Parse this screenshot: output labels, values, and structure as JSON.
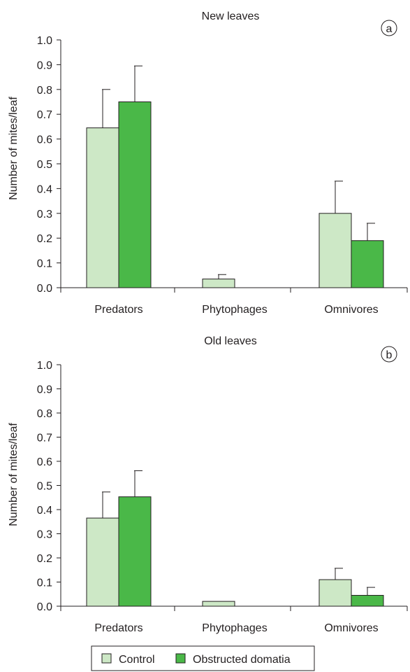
{
  "colors": {
    "control": "#cde8c6",
    "obstructed": "#4ab848",
    "stroke": "#231f20"
  },
  "chart_data": [
    {
      "type": "bar",
      "title": "New leaves",
      "panel_label": "a",
      "ylabel": "Number of mites/leaf",
      "xlabel": "",
      "ylim": [
        0,
        1.0
      ],
      "yticks": [
        "0.0",
        "0.1",
        "0.2",
        "0.3",
        "0.4",
        "0.5",
        "0.6",
        "0.7",
        "0.8",
        "0.9",
        "1.0"
      ],
      "categories": [
        "Predators",
        "Phytophages",
        "Omnivores"
      ],
      "series": [
        {
          "name": "Control",
          "values": [
            0.645,
            0.035,
            0.3
          ],
          "errors": [
            0.155,
            0.018,
            0.13
          ]
        },
        {
          "name": "Obstructed domatia",
          "values": [
            0.75,
            0.0,
            0.19
          ],
          "errors": [
            0.145,
            null,
            0.07
          ]
        }
      ]
    },
    {
      "type": "bar",
      "title": "Old leaves",
      "panel_label": "b",
      "ylabel": "Number of mites/leaf",
      "xlabel": "",
      "ylim": [
        0,
        1.0
      ],
      "yticks": [
        "0.0",
        "0.1",
        "0.2",
        "0.3",
        "0.4",
        "0.5",
        "0.6",
        "0.7",
        "0.8",
        "0.9",
        "1.0"
      ],
      "categories": [
        "Predators",
        "Phytophages",
        "Omnivores"
      ],
      "series": [
        {
          "name": "Control",
          "values": [
            0.365,
            0.02,
            0.11
          ],
          "errors": [
            0.108,
            null,
            0.047
          ]
        },
        {
          "name": "Obstructed domatia",
          "values": [
            0.453,
            0.0,
            0.045
          ],
          "errors": [
            0.108,
            null,
            0.033
          ]
        }
      ]
    }
  ],
  "legend": {
    "items": [
      {
        "label": "Control"
      },
      {
        "label": "Obstructed domatia"
      }
    ]
  }
}
